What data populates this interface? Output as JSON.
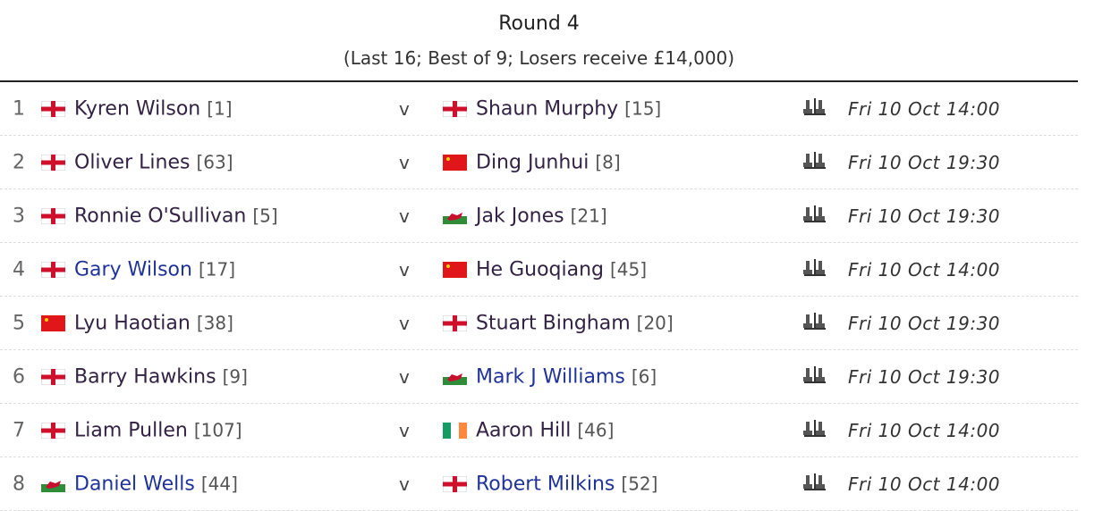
{
  "header": {
    "title": "Round 4",
    "subtitle": "(Last 16; Best of 9; Losers receive £14,000)"
  },
  "vs_label": "v",
  "colors": {
    "link": "#1f3399",
    "visited": "#332244"
  },
  "matches": [
    {
      "num": "1",
      "p1": {
        "name": "Kyren Wilson",
        "seed": "[1]",
        "flag": "england",
        "link": false
      },
      "p2": {
        "name": "Shaun Murphy",
        "seed": "[15]",
        "flag": "england",
        "link": false
      },
      "date": "Fri 10 Oct 14:00"
    },
    {
      "num": "2",
      "p1": {
        "name": "Oliver Lines",
        "seed": "[63]",
        "flag": "england",
        "link": false
      },
      "p2": {
        "name": "Ding Junhui",
        "seed": "[8]",
        "flag": "china",
        "link": false
      },
      "date": "Fri 10 Oct 19:30"
    },
    {
      "num": "3",
      "p1": {
        "name": "Ronnie O'Sullivan",
        "seed": "[5]",
        "flag": "england",
        "link": false
      },
      "p2": {
        "name": "Jak Jones",
        "seed": "[21]",
        "flag": "wales",
        "link": false
      },
      "date": "Fri 10 Oct 19:30"
    },
    {
      "num": "4",
      "p1": {
        "name": "Gary Wilson",
        "seed": "[17]",
        "flag": "england",
        "link": true
      },
      "p2": {
        "name": "He Guoqiang",
        "seed": "[45]",
        "flag": "china",
        "link": false
      },
      "date": "Fri 10 Oct 14:00"
    },
    {
      "num": "5",
      "p1": {
        "name": "Lyu Haotian",
        "seed": "[38]",
        "flag": "china",
        "link": false
      },
      "p2": {
        "name": "Stuart Bingham",
        "seed": "[20]",
        "flag": "england",
        "link": false
      },
      "date": "Fri 10 Oct 19:30"
    },
    {
      "num": "6",
      "p1": {
        "name": "Barry Hawkins",
        "seed": "[9]",
        "flag": "england",
        "link": false
      },
      "p2": {
        "name": "Mark J Williams",
        "seed": "[6]",
        "flag": "wales",
        "link": true
      },
      "date": "Fri 10 Oct 19:30"
    },
    {
      "num": "7",
      "p1": {
        "name": "Liam Pullen",
        "seed": "[107]",
        "flag": "england",
        "link": false
      },
      "p2": {
        "name": "Aaron Hill",
        "seed": "[46]",
        "flag": "ireland",
        "link": false
      },
      "date": "Fri 10 Oct 14:00"
    },
    {
      "num": "8",
      "p1": {
        "name": "Daniel Wells",
        "seed": "[44]",
        "flag": "wales",
        "link": true
      },
      "p2": {
        "name": "Robert Milkins",
        "seed": "[52]",
        "flag": "england",
        "link": true
      },
      "date": "Fri 10 Oct 14:00"
    }
  ]
}
